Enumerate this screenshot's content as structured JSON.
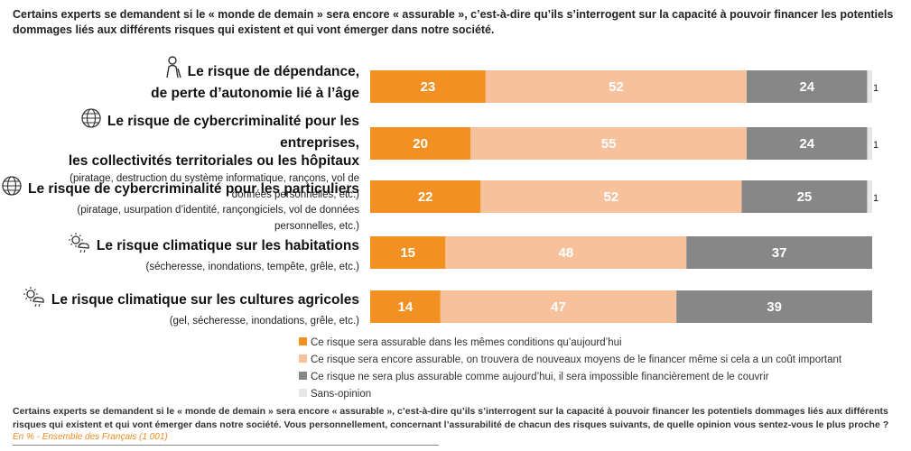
{
  "header": "Certains experts se demandent si le « monde de demain » sera encore « assurable », c’est-à-dire qu’ils s’interrogent sur la capacité à pouvoir financer les potentiels dommages liés aux différents risques qui existent et qui vont émerger dans notre société.",
  "rows": [
    {
      "icon": "elderly-person-icon",
      "title_lines": [
        "Le risque de dépendance,",
        "de perte d’autonomie lié à l’âge"
      ],
      "subtitle_lines": []
    },
    {
      "icon": "globe-icon",
      "title_lines": [
        "Le risque de cybercriminalité pour les entreprises,",
        "les collectivités territoriales ou les hôpitaux"
      ],
      "subtitle_lines": [
        "(piratage, destruction du système informatique, rançons, vol de",
        "données personnelles, etc.)"
      ]
    },
    {
      "icon": "globe-icon",
      "title_lines": [
        "Le risque de cybercriminalité pour les particuliers"
      ],
      "subtitle_lines": [
        "(piratage, usurpation d’identité, rançongiciels, vol de données",
        "personnelles, etc.)"
      ]
    },
    {
      "icon": "climate-icon",
      "title_lines": [
        "Le risque climatique sur les habitations"
      ],
      "subtitle_lines": [
        "(sécheresse, inondations, tempête, grêle, etc.)"
      ]
    },
    {
      "icon": "climate-icon",
      "title_lines": [
        "Le risque climatique sur les cultures agricoles"
      ],
      "subtitle_lines": [
        "(gel, sécheresse, inondations, grêle, etc.)"
      ]
    }
  ],
  "chart_data": {
    "type": "bar",
    "orientation": "horizontal",
    "stacked": true,
    "unit": "%",
    "categories": [
      "Le risque de dépendance, de perte d’autonomie lié à l’âge",
      "Le risque de cybercriminalité pour les entreprises, les collectivités territoriales ou les hôpitaux",
      "Le risque de cybercriminalité pour les particuliers",
      "Le risque climatique sur les habitations",
      "Le risque climatique sur les cultures agricoles"
    ],
    "series": [
      {
        "name": "Ce risque sera assurable dans les mêmes conditions qu’aujourd’hui",
        "color": "#f29122",
        "label_color": "#ffffff",
        "values": [
          23,
          20,
          22,
          15,
          14
        ]
      },
      {
        "name": "Ce risque sera encore assurable, on trouvera de nouveaux moyens de le financer même si cela a un coût important",
        "color": "#f7c19c",
        "label_color": "#ffffff",
        "values": [
          52,
          55,
          52,
          48,
          47
        ]
      },
      {
        "name": "Ce risque ne sera plus assurable comme aujourd’hui, il sera impossible financièrement de le couvrir",
        "color": "#878787",
        "label_color": "#ffffff",
        "values": [
          24,
          24,
          25,
          37,
          39
        ]
      },
      {
        "name": "Sans-opinion",
        "color": "#e6e6e6",
        "label_color": "#1a1a1a",
        "values": [
          1,
          1,
          1,
          0,
          0
        ]
      }
    ],
    "xlim": [
      0,
      100
    ],
    "grid": false,
    "legend_position": "bottom"
  },
  "question": "Certains experts se demandent si le « monde de demain » sera encore « assurable », c’est-à-dire qu’ils s’interrogent sur la capacité à pouvoir financer les potentiels dommages liés aux différents risques qui existent et qui vont émerger dans notre société. Vous personnellement, concernant l’assurabilité de chacun des risques suivants, de quelle opinion vous sentez-vous le plus proche ?",
  "source": "En % - Ensemble des Français (1 001)"
}
